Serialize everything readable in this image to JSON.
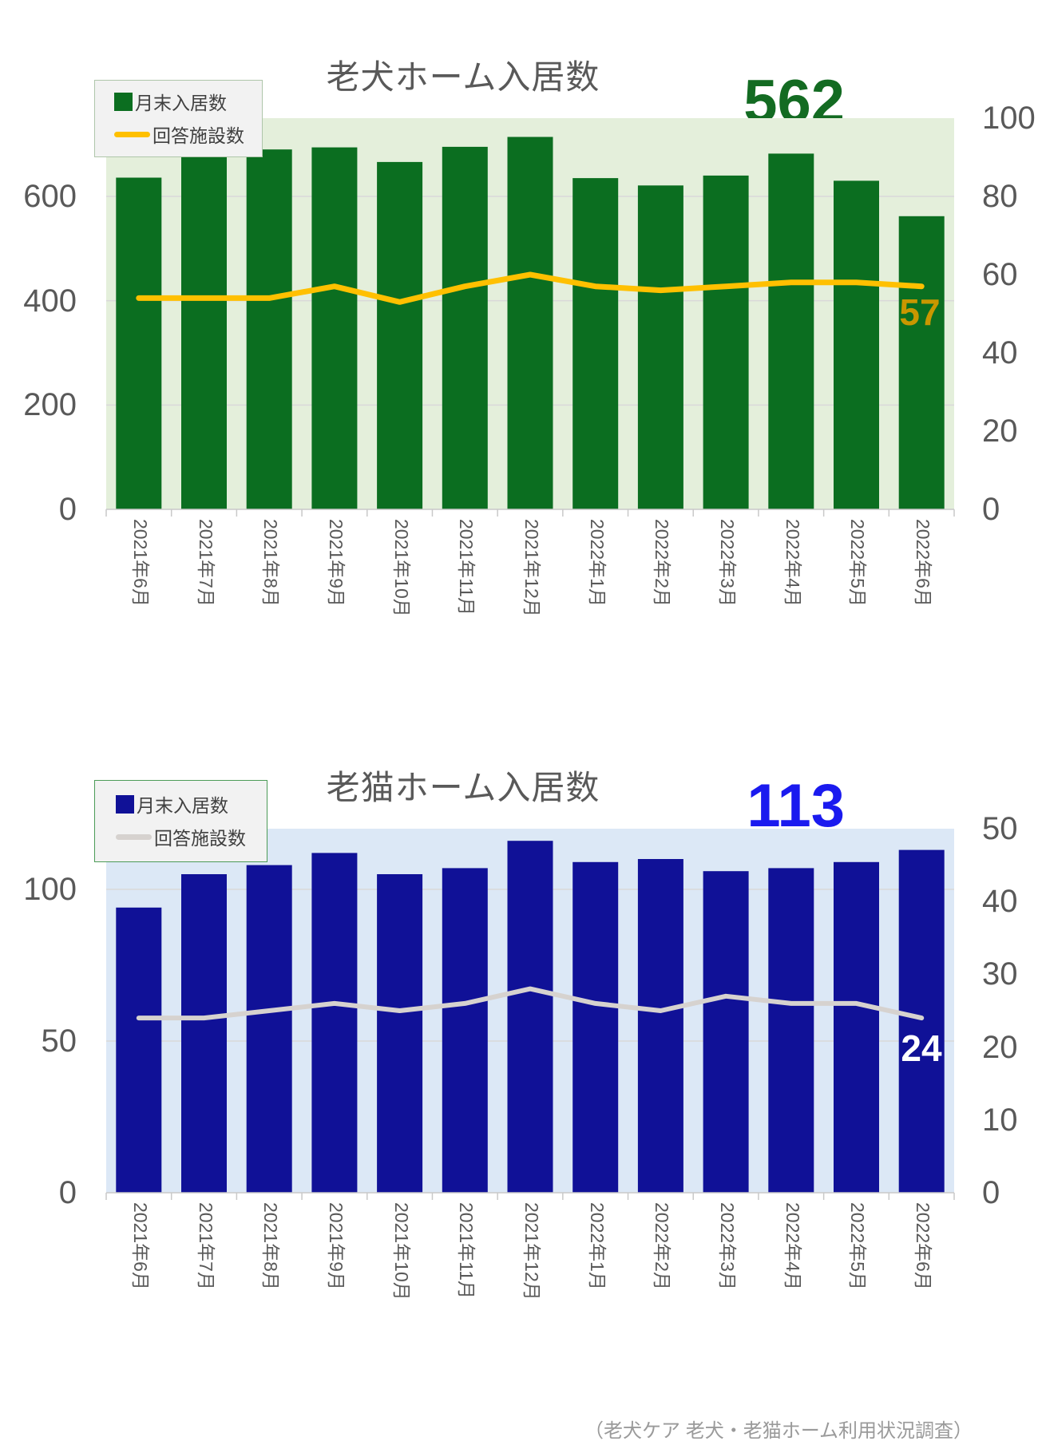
{
  "page": {
    "footer_note": "（老犬ケア 老犬・老猫ホーム利用状況調査）"
  },
  "chart_data": [
    {
      "type": "bar",
      "title": "老犬ホーム入居数",
      "categories": [
        "2021年6月",
        "2021年7月",
        "2021年8月",
        "2021年9月",
        "2021年10月",
        "2021年11月",
        "2021年12月",
        "2022年1月",
        "2022年2月",
        "2022年3月",
        "2022年4月",
        "2022年5月",
        "2022年6月"
      ],
      "series": [
        {
          "name": "月末入居数",
          "kind": "bar",
          "axis": "left",
          "color": "#0B6E20",
          "values": [
            636,
            676,
            690,
            694,
            666,
            695,
            714,
            635,
            621,
            640,
            682,
            630,
            562
          ]
        },
        {
          "name": "回答施設数",
          "kind": "line",
          "axis": "right",
          "color": "#FFC000",
          "values": [
            54,
            54,
            54,
            57,
            53,
            57,
            60,
            57,
            56,
            57,
            58,
            58,
            57
          ]
        }
      ],
      "left_axis": {
        "ticks": [
          0,
          200,
          400,
          600
        ],
        "max": 750
      },
      "right_axis": {
        "ticks": [
          0,
          20,
          40,
          60,
          80,
          100
        ],
        "max": 100
      },
      "annotations": {
        "big_value": "562",
        "big_value_color": "#136B22",
        "line_end_label": "57",
        "line_end_label_color": "#C99700"
      },
      "plot_bg": "#E4EFDB",
      "grid": true,
      "legend_position": "top-left",
      "legend_border": "#AFC6AA"
    },
    {
      "type": "bar",
      "title": "老猫ホーム入居数",
      "categories": [
        "2021年6月",
        "2021年7月",
        "2021年8月",
        "2021年9月",
        "2021年10月",
        "2021年11月",
        "2021年12月",
        "2022年1月",
        "2022年2月",
        "2022年3月",
        "2022年4月",
        "2022年5月",
        "2022年6月"
      ],
      "series": [
        {
          "name": "月末入居数",
          "kind": "bar",
          "axis": "left",
          "color": "#101197",
          "values": [
            94,
            105,
            108,
            112,
            105,
            107,
            116,
            109,
            110,
            106,
            107,
            109,
            113
          ]
        },
        {
          "name": "回答施設数",
          "kind": "line",
          "axis": "right",
          "color": "#D6D2CF",
          "values": [
            24,
            24,
            25,
            26,
            25,
            26,
            28,
            26,
            25,
            27,
            26,
            26,
            24
          ]
        }
      ],
      "left_axis": {
        "ticks": [
          0,
          50,
          100
        ],
        "max": 120
      },
      "right_axis": {
        "ticks": [
          0,
          10,
          20,
          30,
          40,
          50
        ],
        "max": 50
      },
      "annotations": {
        "big_value": "113",
        "big_value_color": "#1A1AEF",
        "line_end_label": "24",
        "line_end_label_color": "#FFFFFF"
      },
      "plot_bg": "#DCE8F6",
      "grid": true,
      "legend_position": "top-left",
      "legend_border": "#4C9B57"
    }
  ]
}
